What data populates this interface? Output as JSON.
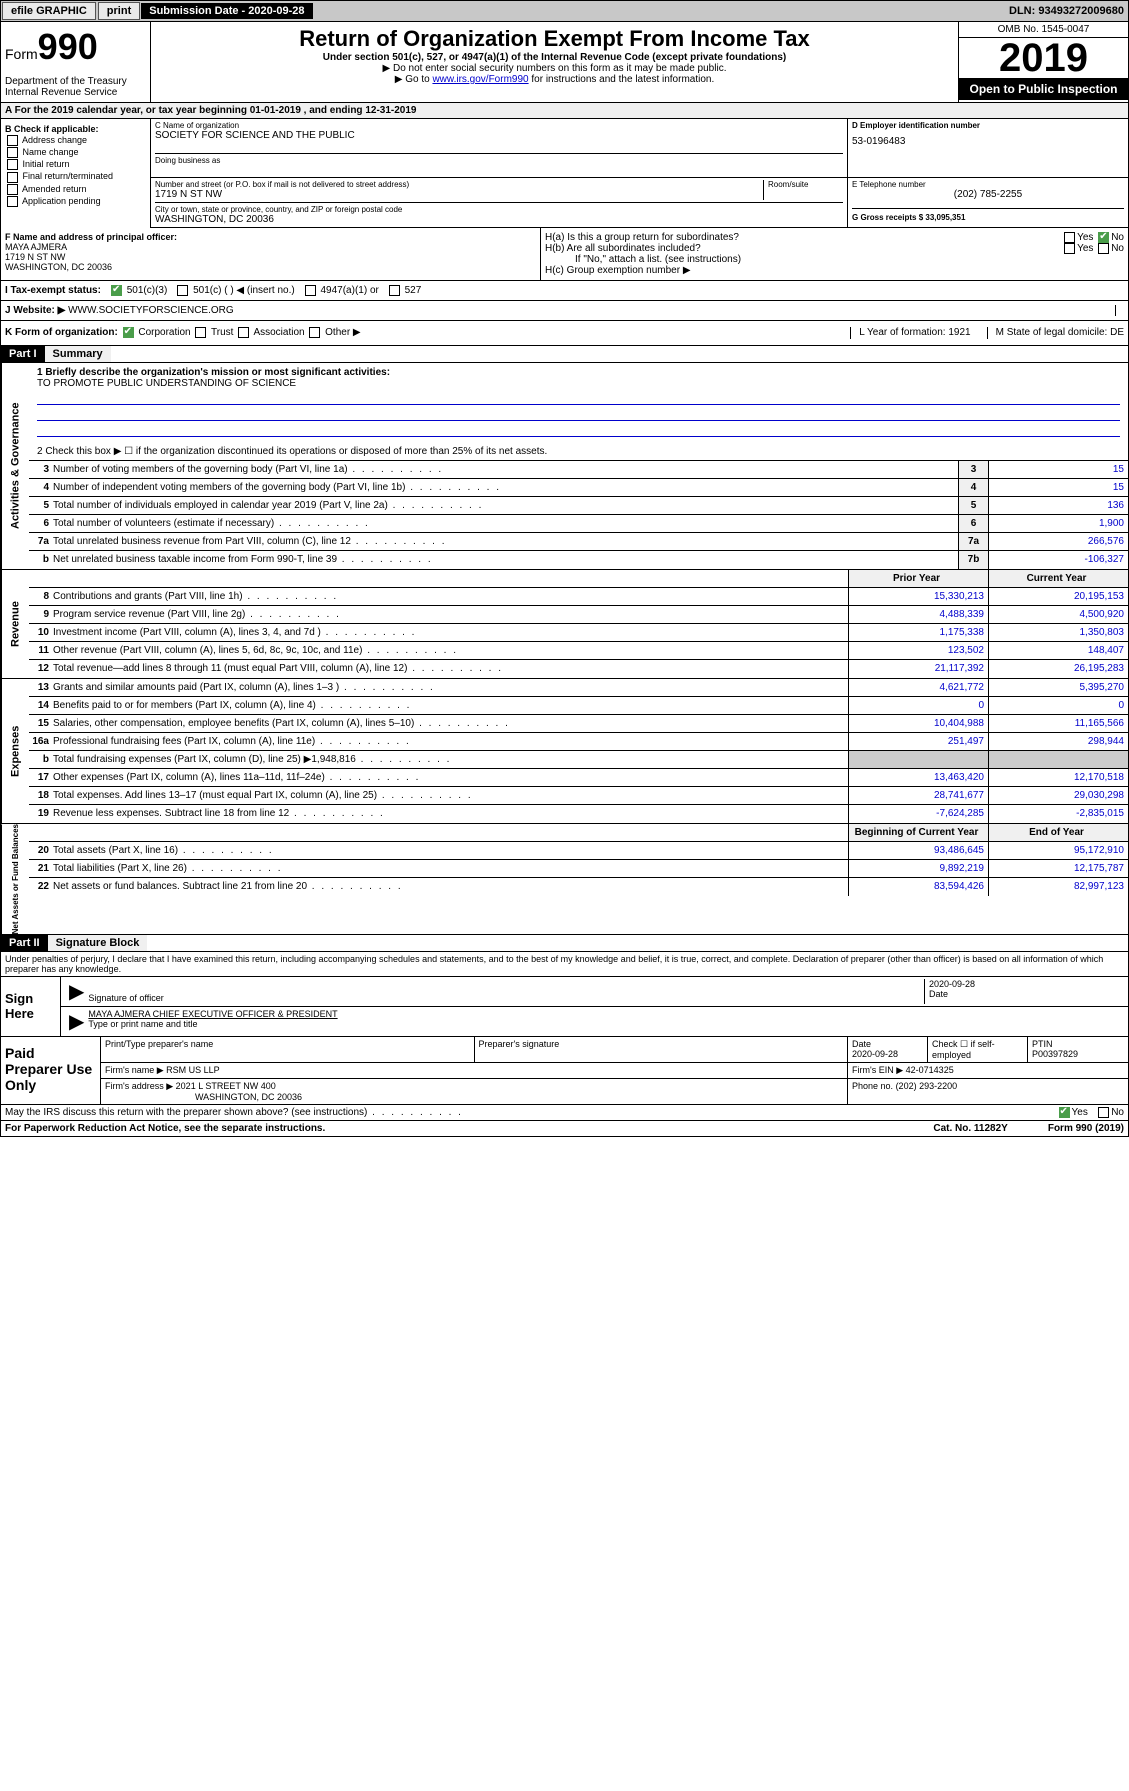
{
  "topbar": {
    "efile": "efile GRAPHIC",
    "print": "print",
    "subdate_label": "Submission Date - 2020-09-28",
    "dln": "DLN: 93493272009680"
  },
  "header": {
    "form_prefix": "Form",
    "form_num": "990",
    "dept": "Department of the Treasury\nInternal Revenue Service",
    "title": "Return of Organization Exempt From Income Tax",
    "sub": "Under section 501(c), 527, or 4947(a)(1) of the Internal Revenue Code (except private foundations)",
    "instr1": "▶ Do not enter social security numbers on this form as it may be made public.",
    "instr2_pre": "▶ Go to ",
    "instr2_link": "www.irs.gov/Form990",
    "instr2_post": " for instructions and the latest information.",
    "omb": "OMB No. 1545-0047",
    "year": "2019",
    "open": "Open to Public Inspection"
  },
  "sectionA": "A For the 2019 calendar year, or tax year beginning 01-01-2019   , and ending 12-31-2019",
  "B": {
    "label": "B Check if applicable:",
    "items": [
      "Address change",
      "Name change",
      "Initial return",
      "Final return/terminated",
      "Amended return",
      "Application pending"
    ]
  },
  "C": {
    "name_label": "C Name of organization",
    "name": "SOCIETY FOR SCIENCE AND THE PUBLIC",
    "dba_label": "Doing business as",
    "addr_label": "Number and street (or P.O. box if mail is not delivered to street address)",
    "room_label": "Room/suite",
    "addr": "1719 N ST NW",
    "city_label": "City or town, state or province, country, and ZIP or foreign postal code",
    "city": "WASHINGTON, DC  20036"
  },
  "D": {
    "label": "D Employer identification number",
    "val": "53-0196483"
  },
  "E": {
    "label": "E Telephone number",
    "val": "(202) 785-2255"
  },
  "G": {
    "label": "G Gross receipts $ 33,095,351"
  },
  "F": {
    "label": "F  Name and address of principal officer:",
    "name": "MAYA AJMERA",
    "addr1": "1719 N ST NW",
    "addr2": "WASHINGTON, DC  20036"
  },
  "H": {
    "a": "H(a)  Is this a group return for subordinates?",
    "b": "H(b)  Are all subordinates included?",
    "b_note": "If \"No,\" attach a list. (see instructions)",
    "c": "H(c)  Group exemption number ▶"
  },
  "I": {
    "label": "I   Tax-exempt status:",
    "opts": [
      "501(c)(3)",
      "501(c) (  ) ◀ (insert no.)",
      "4947(a)(1) or",
      "527"
    ]
  },
  "J": {
    "label": "J   Website: ▶",
    "val": "WWW.SOCIETYFORSCIENCE.ORG"
  },
  "K": {
    "label": "K Form of organization:",
    "opts": [
      "Corporation",
      "Trust",
      "Association",
      "Other ▶"
    ]
  },
  "L": "L Year of formation: 1921",
  "M": "M State of legal domicile: DE",
  "part1": {
    "hdr": "Part I",
    "title": "Summary"
  },
  "summary": {
    "q1": "1  Briefly describe the organization's mission or most significant activities:",
    "q1v": "TO PROMOTE PUBLIC UNDERSTANDING OF SCIENCE",
    "q2": "2   Check this box ▶ ☐  if the organization discontinued its operations or disposed of more than 25% of its net assets.",
    "lines_ag": [
      {
        "n": "3",
        "d": "Number of voting members of the governing body (Part VI, line 1a)",
        "box": "3",
        "v": "15"
      },
      {
        "n": "4",
        "d": "Number of independent voting members of the governing body (Part VI, line 1b)",
        "box": "4",
        "v": "15"
      },
      {
        "n": "5",
        "d": "Total number of individuals employed in calendar year 2019 (Part V, line 2a)",
        "box": "5",
        "v": "136"
      },
      {
        "n": "6",
        "d": "Total number of volunteers (estimate if necessary)",
        "box": "6",
        "v": "1,900"
      },
      {
        "n": "7a",
        "d": "Total unrelated business revenue from Part VIII, column (C), line 12",
        "box": "7a",
        "v": "266,576"
      },
      {
        "n": "b",
        "d": "Net unrelated business taxable income from Form 990-T, line 39",
        "box": "7b",
        "v": "-106,327"
      }
    ],
    "col_hdr1": "Prior Year",
    "col_hdr2": "Current Year",
    "rev": [
      {
        "n": "8",
        "d": "Contributions and grants (Part VIII, line 1h)",
        "p": "15,330,213",
        "c": "20,195,153"
      },
      {
        "n": "9",
        "d": "Program service revenue (Part VIII, line 2g)",
        "p": "4,488,339",
        "c": "4,500,920"
      },
      {
        "n": "10",
        "d": "Investment income (Part VIII, column (A), lines 3, 4, and 7d )",
        "p": "1,175,338",
        "c": "1,350,803"
      },
      {
        "n": "11",
        "d": "Other revenue (Part VIII, column (A), lines 5, 6d, 8c, 9c, 10c, and 11e)",
        "p": "123,502",
        "c": "148,407"
      },
      {
        "n": "12",
        "d": "Total revenue—add lines 8 through 11 (must equal Part VIII, column (A), line 12)",
        "p": "21,117,392",
        "c": "26,195,283"
      }
    ],
    "exp": [
      {
        "n": "13",
        "d": "Grants and similar amounts paid (Part IX, column (A), lines 1–3 )",
        "p": "4,621,772",
        "c": "5,395,270"
      },
      {
        "n": "14",
        "d": "Benefits paid to or for members (Part IX, column (A), line 4)",
        "p": "0",
        "c": "0"
      },
      {
        "n": "15",
        "d": "Salaries, other compensation, employee benefits (Part IX, column (A), lines 5–10)",
        "p": "10,404,988",
        "c": "11,165,566"
      },
      {
        "n": "16a",
        "d": "Professional fundraising fees (Part IX, column (A), line 11e)",
        "p": "251,497",
        "c": "298,944"
      },
      {
        "n": "b",
        "d": "Total fundraising expenses (Part IX, column (D), line 25) ▶1,948,816",
        "p": "",
        "c": "",
        "shade": true
      },
      {
        "n": "17",
        "d": "Other expenses (Part IX, column (A), lines 11a–11d, 11f–24e)",
        "p": "13,463,420",
        "c": "12,170,518"
      },
      {
        "n": "18",
        "d": "Total expenses. Add lines 13–17 (must equal Part IX, column (A), line 25)",
        "p": "28,741,677",
        "c": "29,030,298"
      },
      {
        "n": "19",
        "d": "Revenue less expenses. Subtract line 18 from line 12",
        "p": "-7,624,285",
        "c": "-2,835,015"
      }
    ],
    "na_hdr1": "Beginning of Current Year",
    "na_hdr2": "End of Year",
    "na": [
      {
        "n": "20",
        "d": "Total assets (Part X, line 16)",
        "p": "93,486,645",
        "c": "95,172,910"
      },
      {
        "n": "21",
        "d": "Total liabilities (Part X, line 26)",
        "p": "9,892,219",
        "c": "12,175,787"
      },
      {
        "n": "22",
        "d": "Net assets or fund balances. Subtract line 21 from line 20",
        "p": "83,594,426",
        "c": "82,997,123"
      }
    ]
  },
  "sides": {
    "ag": "Activities & Governance",
    "rev": "Revenue",
    "exp": "Expenses",
    "na": "Net Assets or Fund Balances"
  },
  "part2": {
    "hdr": "Part II",
    "title": "Signature Block"
  },
  "sig": {
    "decl": "Under penalties of perjury, I declare that I have examined this return, including accompanying schedules and statements, and to the best of my knowledge and belief, it is true, correct, and complete. Declaration of preparer (other than officer) is based on all information of which preparer has any knowledge.",
    "sign_here": "Sign Here",
    "sig_officer": "Signature of officer",
    "date": "2020-09-28",
    "date_lbl": "Date",
    "name_title": "MAYA AJMERA  CHIEF EXECUTIVE OFFICER & PRESIDENT",
    "name_lbl": "Type or print name and title"
  },
  "paid": {
    "label": "Paid Preparer Use Only",
    "h1": "Print/Type preparer's name",
    "h2": "Preparer's signature",
    "h3": "Date",
    "h3v": "2020-09-28",
    "h4": "Check ☐ if self-employed",
    "h5": "PTIN",
    "h5v": "P00397829",
    "firm_lbl": "Firm's name    ▶",
    "firm": "RSM US LLP",
    "ein_lbl": "Firm's EIN ▶",
    "ein": "42-0714325",
    "addr_lbl": "Firm's address ▶",
    "addr1": "2021 L STREET NW 400",
    "addr2": "WASHINGTON, DC  20036",
    "phone_lbl": "Phone no.",
    "phone": "(202) 293-2200"
  },
  "footer": {
    "discuss": "May the IRS discuss this return with the preparer shown above? (see instructions)",
    "paperwork": "For Paperwork Reduction Act Notice, see the separate instructions.",
    "cat": "Cat. No. 11282Y",
    "form": "Form 990 (2019)"
  }
}
